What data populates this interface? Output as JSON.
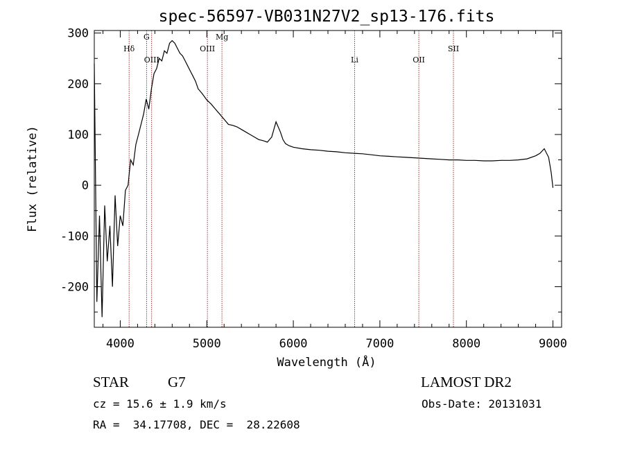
{
  "chart_data": {
    "type": "line",
    "title": "spec-56597-VB031N27V2_sp13-176.fits",
    "xlabel": "Wavelength (Å)",
    "ylabel": "Flux (relative)",
    "xlim": [
      3700,
      9100
    ],
    "ylim": [
      -280,
      305
    ],
    "xticks": [
      4000,
      5000,
      6000,
      7000,
      8000,
      9000
    ],
    "yticks": [
      -200,
      -100,
      0,
      100,
      200,
      300
    ],
    "grid": false,
    "series": [
      {
        "x": [
          3700,
          3730,
          3760,
          3790,
          3820,
          3850,
          3880,
          3910,
          3940,
          3970,
          4000,
          4030,
          4060,
          4090,
          4120,
          4150,
          4180,
          4210,
          4240,
          4270,
          4300,
          4330,
          4360,
          4390,
          4420,
          4450,
          4480,
          4510,
          4540,
          4570,
          4600,
          4630,
          4660,
          4690,
          4720,
          4750,
          4780,
          4810,
          4840,
          4870,
          4900,
          4950,
          5000,
          5050,
          5100,
          5150,
          5200,
          5250,
          5300,
          5350,
          5400,
          5450,
          5500,
          5550,
          5600,
          5650,
          5700,
          5750,
          5800,
          5850,
          5880,
          5910,
          5950,
          6000,
          6100,
          6200,
          6300,
          6400,
          6500,
          6600,
          6700,
          6800,
          6900,
          7000,
          7100,
          7200,
          7300,
          7400,
          7500,
          7600,
          7700,
          7800,
          7900,
          8000,
          8100,
          8200,
          8300,
          8400,
          8500,
          8600,
          8700,
          8800,
          8850,
          8900,
          8950,
          8980,
          9000
        ],
        "y": [
          240,
          -230,
          -60,
          -260,
          -40,
          -150,
          -80,
          -200,
          -20,
          -120,
          -60,
          -80,
          -10,
          0,
          50,
          40,
          80,
          100,
          120,
          140,
          170,
          150,
          190,
          220,
          230,
          250,
          245,
          265,
          260,
          280,
          285,
          280,
          270,
          260,
          255,
          245,
          235,
          225,
          215,
          205,
          190,
          180,
          168,
          160,
          150,
          140,
          130,
          120,
          118,
          115,
          110,
          105,
          100,
          95,
          90,
          88,
          85,
          95,
          125,
          105,
          90,
          82,
          78,
          75,
          72,
          70,
          69,
          67,
          66,
          64,
          63,
          62,
          60,
          58,
          57,
          56,
          55,
          54,
          53,
          52,
          51,
          50,
          50,
          49,
          49,
          48,
          48,
          49,
          49,
          50,
          52,
          58,
          63,
          72,
          55,
          25,
          -5
        ],
        "color": "#000000"
      }
    ],
    "vlines": [
      {
        "label": "Hδ",
        "x": 4102
      },
      {
        "label": "G",
        "x": 4304
      },
      {
        "label": "OIII",
        "x": 4363
      },
      {
        "label": "OIII",
        "x": 5007
      },
      {
        "label": "Mg",
        "x": 5175
      },
      {
        "label": "Li",
        "x": 6708
      },
      {
        "label": "OII",
        "x": 7450
      },
      {
        "label": "SII",
        "x": 7850
      }
    ],
    "vline_color": "#8b0000"
  },
  "info": {
    "object": "STAR",
    "subclass": "G7",
    "survey": "LAMOST DR2",
    "cz": "cz = 15.6 ± 1.9 km/s",
    "obs_date": "Obs-Date: 20131031",
    "coords": "RA =  34.17708, DEC =  28.22608"
  }
}
